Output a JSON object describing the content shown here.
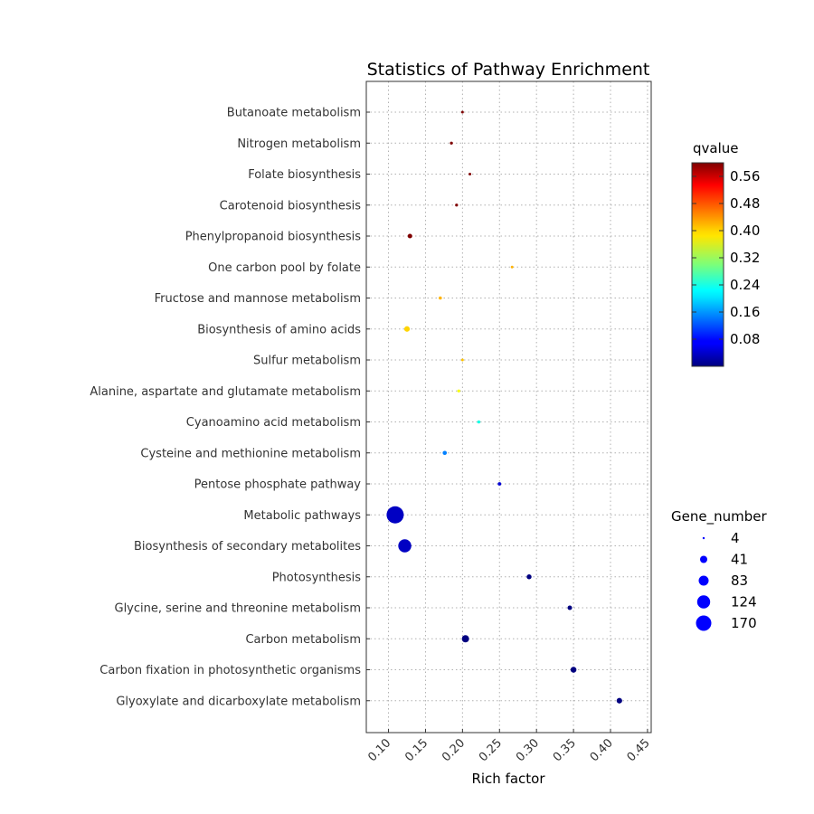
{
  "chart_data": {
    "type": "scatter",
    "title": "Statistics of Pathway Enrichment",
    "xlabel": "Rich factor",
    "ylabel": "",
    "xlim": [
      0.07,
      0.455
    ],
    "xticks": [
      "0.10",
      "0.15",
      "0.20",
      "0.25",
      "0.30",
      "0.35",
      "0.40",
      "0.45"
    ],
    "grid": true,
    "colorbar": {
      "title": "qvalue",
      "colormap": "jet",
      "range": [
        0.0,
        0.6
      ],
      "ticks": [
        "0.56",
        "0.48",
        "0.40",
        "0.32",
        "0.24",
        "0.16",
        "0.08"
      ]
    },
    "size_legend": {
      "title": "Gene_number",
      "values": [
        "4",
        "41",
        "83",
        "124",
        "170"
      ]
    },
    "points": [
      {
        "pathway": "Butanoate metabolism",
        "rich_factor": 0.2,
        "qvalue": 0.6,
        "gene_number": 4
      },
      {
        "pathway": "Nitrogen metabolism",
        "rich_factor": 0.185,
        "qvalue": 0.6,
        "gene_number": 5
      },
      {
        "pathway": "Folate biosynthesis",
        "rich_factor": 0.21,
        "qvalue": 0.6,
        "gene_number": 4
      },
      {
        "pathway": "Carotenoid biosynthesis",
        "rich_factor": 0.192,
        "qvalue": 0.6,
        "gene_number": 5
      },
      {
        "pathway": "Phenylpropanoid biosynthesis",
        "rich_factor": 0.129,
        "qvalue": 0.6,
        "gene_number": 12
      },
      {
        "pathway": "One carbon pool by folate",
        "rich_factor": 0.267,
        "qvalue": 0.42,
        "gene_number": 4
      },
      {
        "pathway": "Fructose and mannose metabolism",
        "rich_factor": 0.17,
        "qvalue": 0.42,
        "gene_number": 6
      },
      {
        "pathway": "Biosynthesis of amino acids",
        "rich_factor": 0.125,
        "qvalue": 0.4,
        "gene_number": 18
      },
      {
        "pathway": "Sulfur metabolism",
        "rich_factor": 0.2,
        "qvalue": 0.41,
        "gene_number": 4
      },
      {
        "pathway": "Alanine, aspartate and glutamate metabolism",
        "rich_factor": 0.195,
        "qvalue": 0.37,
        "gene_number": 5
      },
      {
        "pathway": "Cyanoamino acid metabolism",
        "rich_factor": 0.222,
        "qvalue": 0.24,
        "gene_number": 6
      },
      {
        "pathway": "Cysteine and methionine metabolism",
        "rich_factor": 0.176,
        "qvalue": 0.15,
        "gene_number": 10
      },
      {
        "pathway": "Pentose phosphate pathway",
        "rich_factor": 0.25,
        "qvalue": 0.05,
        "gene_number": 7
      },
      {
        "pathway": "Metabolic pathways",
        "rich_factor": 0.109,
        "qvalue": 0.04,
        "gene_number": 170
      },
      {
        "pathway": "Biosynthesis of secondary metabolites",
        "rich_factor": 0.122,
        "qvalue": 0.04,
        "gene_number": 98
      },
      {
        "pathway": "Photosynthesis",
        "rich_factor": 0.29,
        "qvalue": 0.0,
        "gene_number": 14
      },
      {
        "pathway": "Glycine, serine and threonine metabolism",
        "rich_factor": 0.345,
        "qvalue": 0.0,
        "gene_number": 12
      },
      {
        "pathway": "Carbon metabolism",
        "rich_factor": 0.204,
        "qvalue": 0.0,
        "gene_number": 30
      },
      {
        "pathway": "Carbon fixation in photosynthetic organisms",
        "rich_factor": 0.35,
        "qvalue": 0.0,
        "gene_number": 20
      },
      {
        "pathway": "Glyoxylate and dicarboxylate metabolism",
        "rich_factor": 0.412,
        "qvalue": 0.0,
        "gene_number": 18
      }
    ]
  }
}
